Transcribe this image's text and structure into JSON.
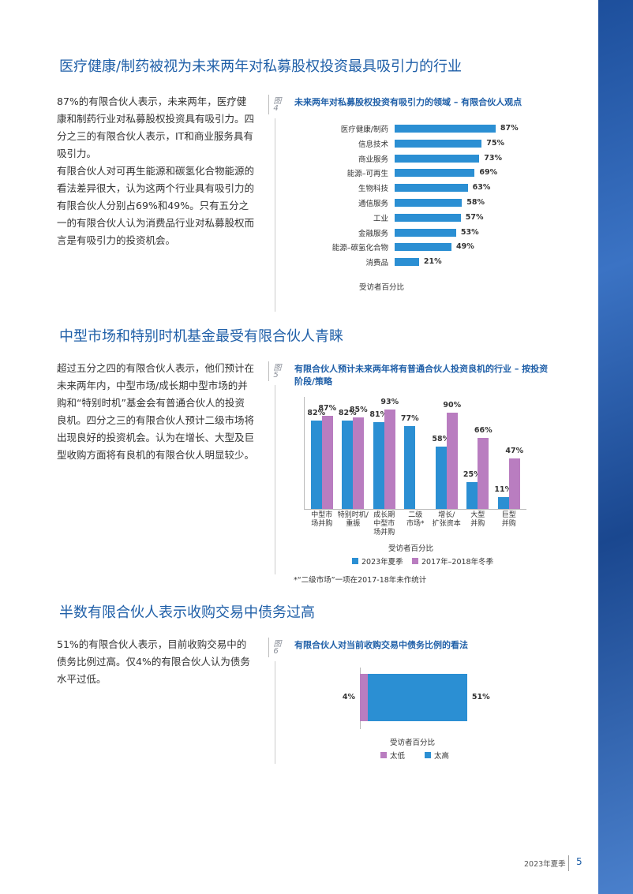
{
  "page": {
    "footer_label": "2023年夏季",
    "page_number": 5
  },
  "sections": [
    {
      "heading": "医疗健康/制药被视为未来两年对私募股权投资最具吸引力的行业",
      "paragraphs": [
        "87%的有限合伙人表示，未来两年，医疗健康和制药行业对私募股权投资具有吸引力。四分之三的有限合伙人表示，IT和商业服务具有吸引力。",
        "有限合伙人对可再生能源和碳氢化合物能源的看法差异很大，认为这两个行业具有吸引力的有限合伙人分别占69%和49%。只有五分之一的有限合伙人认为消费品行业对私募股权而言是有吸引力的投资机会。"
      ]
    },
    {
      "heading": "中型市场和特别时机基金最受有限合伙人青睐",
      "paragraphs": [
        "超过五分之四的有限合伙人表示，他们预计在未来两年内，中型市场/成长期中型市场的并购和“特别时机”基金会有普通合伙人的投资良机。四分之三的有限合伙人预计二级市场将出现良好的投资机会。认为在增长、大型及巨型收购方面将有良机的有限合伙人明显较少。"
      ]
    },
    {
      "heading": "半数有限合伙人表示收购交易中债务过高",
      "paragraphs": [
        "51%的有限合伙人表示，目前收购交易中的债务比例过高。仅4%的有限合伙人认为债务水平过低。"
      ]
    }
  ],
  "chart_data": [
    {
      "type": "hbar",
      "figure": "图4",
      "title": "未来两年对私募股权投资有吸引力的领域 – 有限合伙人观点",
      "categories": [
        "医疗健康/制药",
        "信息技术",
        "商业服务",
        "能源–可再生",
        "生物科技",
        "通信服务",
        "工业",
        "金融服务",
        "能源–碳氢化合物",
        "消费品"
      ],
      "values": [
        87,
        75,
        73,
        69,
        63,
        58,
        57,
        53,
        49,
        21
      ],
      "value_labels": [
        "87%",
        "75%",
        "73%",
        "69%",
        "63%",
        "58%",
        "57%",
        "53%",
        "49%",
        "21%"
      ],
      "color": "#2b8fd3",
      "xlabel": "受访者百分比"
    },
    {
      "type": "bar",
      "figure": "图5",
      "title": "有限合伙人预计未来两年将有普通合伙人投资良机的行业 – 按投资阶段/策略",
      "categories": [
        "中型市\n场并购",
        "特别时机/\n重振",
        "成长期\n中型市\n场并购",
        "二级\n市场*",
        "增长/\n扩张资本",
        "大型\n并购",
        "巨型\n并购"
      ],
      "series": [
        {
          "name": "2023年夏季",
          "color": "#2b8fd3",
          "values": [
            82,
            82,
            81,
            77,
            58,
            25,
            11
          ],
          "value_labels": [
            "82%",
            "82%",
            "81%",
            "77%",
            "58%",
            "25%",
            "11%"
          ]
        },
        {
          "name": "2017年–2018年冬季",
          "color": "#b97dc0",
          "values": [
            87,
            85,
            93,
            null,
            90,
            66,
            47
          ],
          "value_labels": [
            "87%",
            "85%",
            "93%",
            null,
            "90%",
            "66%",
            "47%"
          ]
        }
      ],
      "xlabel": "受访者百分比",
      "footnote": "*“二级市场”一项在2017-18年未作统计"
    },
    {
      "type": "stacked_hbar",
      "figure": "图6",
      "title": "有限合伙人对当前收购交易中债务比例的看法",
      "series": [
        {
          "name": "太低",
          "color": "#b97dc0",
          "values": [
            4
          ],
          "value_labels": [
            "4%"
          ]
        },
        {
          "name": "太高",
          "color": "#2b8fd3",
          "values": [
            51
          ],
          "value_labels": [
            "51%"
          ]
        }
      ],
      "xlabel": "受访者百分比"
    }
  ]
}
